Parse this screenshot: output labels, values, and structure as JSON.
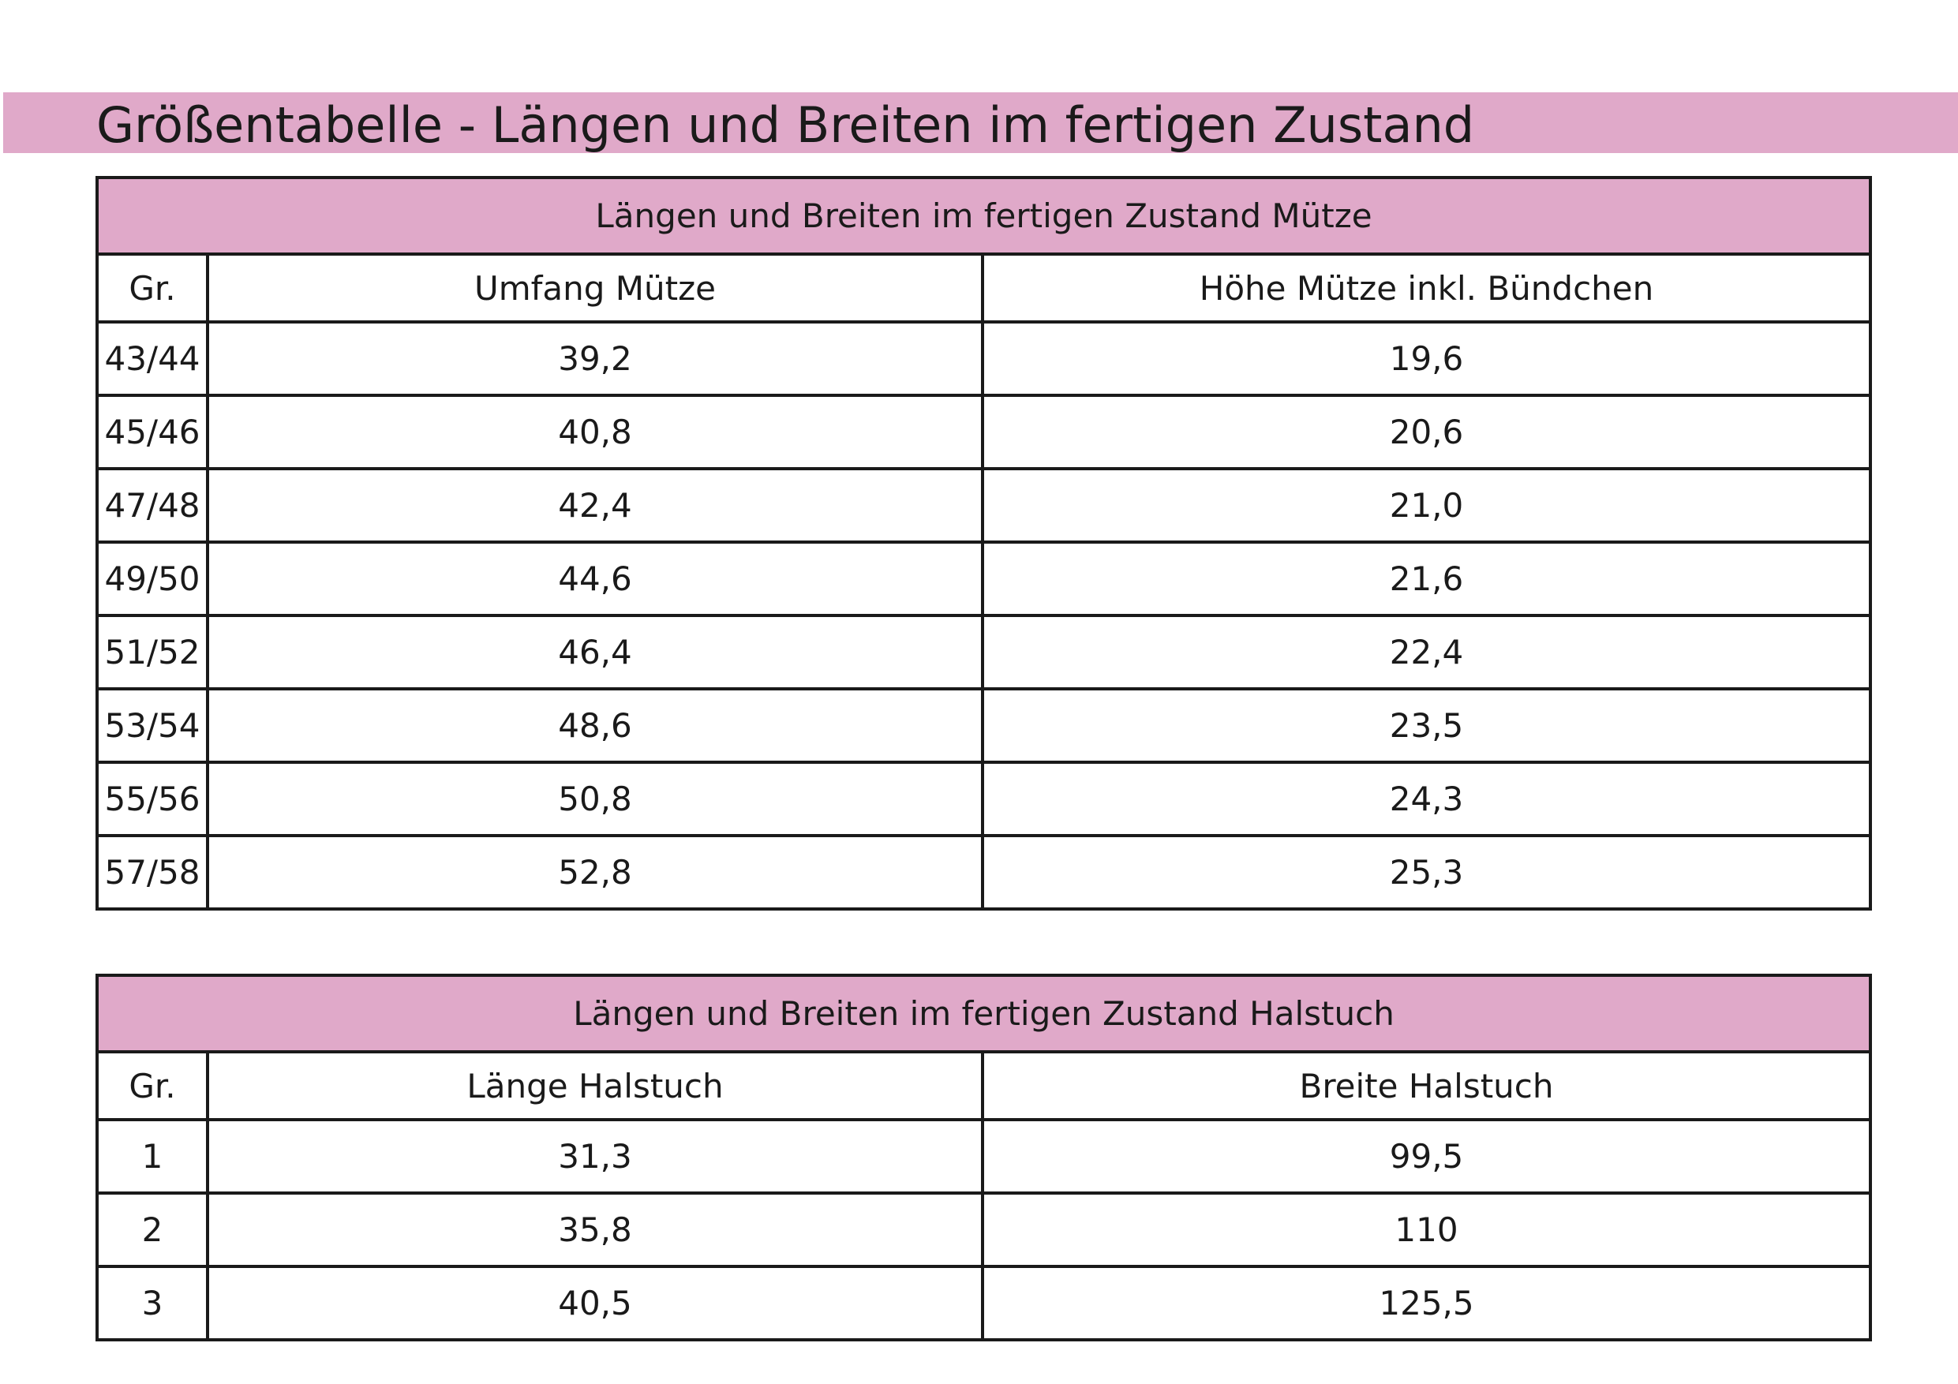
{
  "page": {
    "title": "Größentabelle - Längen und Breiten im fertigen Zustand"
  },
  "colors": {
    "accent_pink": "#e0a9c9",
    "text": "#1a1a1a",
    "border": "#1a1a1a"
  },
  "tables": [
    {
      "caption": "Längen und Breiten im fertigen Zustand Mütze",
      "headers": [
        "Gr.",
        "Umfang Mütze",
        "Höhe Mütze inkl. Bündchen"
      ],
      "rows": [
        [
          "43/44",
          "39,2",
          "19,6"
        ],
        [
          "45/46",
          "40,8",
          "20,6"
        ],
        [
          "47/48",
          "42,4",
          "21,0"
        ],
        [
          "49/50",
          "44,6",
          "21,6"
        ],
        [
          "51/52",
          "46,4",
          "22,4"
        ],
        [
          "53/54",
          "48,6",
          "23,5"
        ],
        [
          "55/56",
          "50,8",
          "24,3"
        ],
        [
          "57/58",
          "52,8",
          "25,3"
        ]
      ]
    },
    {
      "caption": "Längen und Breiten im fertigen Zustand Halstuch",
      "headers": [
        "Gr.",
        "Länge Halstuch",
        "Breite Halstuch"
      ],
      "rows": [
        [
          "1",
          "31,3",
          "99,5"
        ],
        [
          "2",
          "35,8",
          "110"
        ],
        [
          "3",
          "40,5",
          "125,5"
        ]
      ]
    }
  ]
}
